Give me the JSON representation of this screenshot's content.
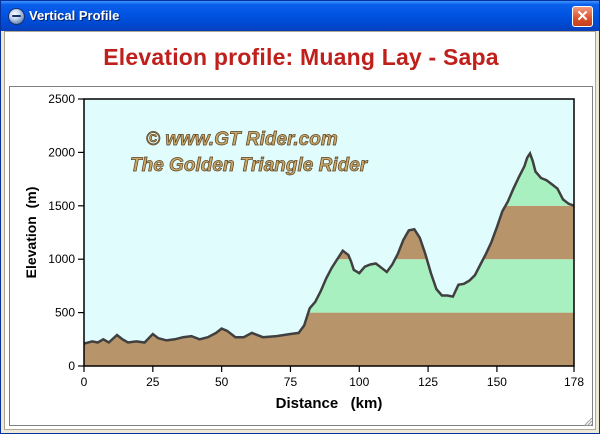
{
  "window": {
    "title": "Vertical Profile",
    "icon": "globe-icon",
    "close_label": "✕"
  },
  "chart_data": {
    "type": "area",
    "title": "Elevation profile: Muang Lay - Sapa",
    "xlabel": "Distance   (km)",
    "ylabel": "Elevation  (m)",
    "xlim": [
      0,
      178
    ],
    "ylim": [
      0,
      2500
    ],
    "x_ticks": [
      0,
      25,
      50,
      75,
      100,
      125,
      150,
      178
    ],
    "y_ticks": [
      0,
      500,
      1000,
      1500,
      2000,
      2500
    ],
    "bands": [
      {
        "from": 0,
        "to": 500,
        "color": "#b8946a"
      },
      {
        "from": 500,
        "to": 1000,
        "color": "#a8f0c0"
      },
      {
        "from": 1000,
        "to": 1500,
        "color": "#b8946a"
      },
      {
        "from": 1500,
        "to": 2000,
        "color": "#a8f0c0"
      },
      {
        "from": 2000,
        "to": 2500,
        "color": "#b8946a"
      }
    ],
    "sky_color": "#e0fcfc",
    "line_color": "#404040",
    "watermark": [
      "©  www.GT Rider.com",
      "The Golden Triangle Rider"
    ],
    "series": [
      {
        "x": [
          0,
          3,
          5,
          7,
          9,
          12,
          14,
          16,
          19,
          22,
          25,
          27,
          30,
          33,
          36,
          39,
          42,
          45,
          48,
          50,
          52,
          55,
          58,
          61,
          65,
          70,
          75,
          78,
          80,
          82,
          84,
          86,
          88,
          90,
          92,
          94,
          95,
          96,
          97,
          98,
          100,
          102,
          104,
          106,
          107,
          108,
          110,
          112,
          114,
          116,
          118,
          120,
          122,
          124,
          126,
          128,
          130,
          132,
          134,
          136,
          138,
          140,
          142,
          144,
          146,
          148,
          150,
          152,
          154,
          156,
          158,
          160,
          161,
          162,
          163,
          164,
          166,
          168,
          170,
          172,
          174,
          176,
          178
        ],
        "y": [
          210,
          230,
          220,
          250,
          220,
          290,
          250,
          220,
          230,
          220,
          300,
          260,
          240,
          250,
          270,
          280,
          250,
          270,
          310,
          350,
          330,
          270,
          270,
          310,
          270,
          280,
          300,
          310,
          380,
          540,
          600,
          700,
          820,
          920,
          1000,
          1080,
          1060,
          1040,
          980,
          900,
          870,
          930,
          950,
          960,
          940,
          920,
          880,
          950,
          1050,
          1180,
          1270,
          1280,
          1200,
          1050,
          870,
          720,
          660,
          660,
          650,
          760,
          770,
          800,
          850,
          950,
          1050,
          1160,
          1300,
          1450,
          1540,
          1660,
          1770,
          1870,
          1950,
          1990,
          1920,
          1820,
          1760,
          1740,
          1700,
          1660,
          1560,
          1520,
          1500
        ]
      }
    ]
  }
}
